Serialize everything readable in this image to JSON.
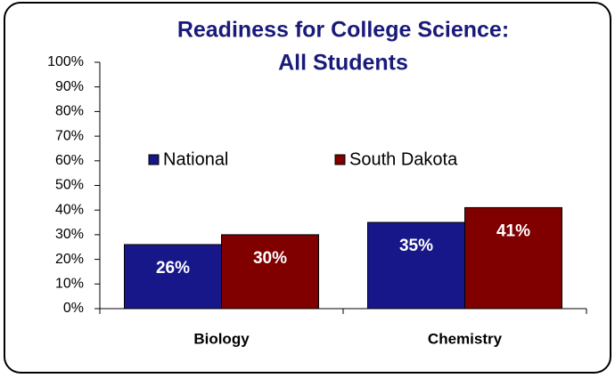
{
  "chart_data": {
    "type": "bar",
    "title": [
      "Readiness for College Science:",
      "All Students"
    ],
    "categories": [
      "Biology",
      "Chemistry"
    ],
    "series": [
      {
        "name": "National",
        "color": "#17178a",
        "values": [
          26,
          35
        ],
        "value_labels": [
          "26%",
          "35%"
        ]
      },
      {
        "name": "South Dakota",
        "color": "#800000",
        "values": [
          30,
          41
        ],
        "value_labels": [
          "30%",
          "41%"
        ]
      }
    ],
    "ylim": [
      0,
      100
    ],
    "yticks": [
      {
        "value": 0,
        "label": "0%"
      },
      {
        "value": 10,
        "label": "10%"
      },
      {
        "value": 20,
        "label": "20%"
      },
      {
        "value": 30,
        "label": "30%"
      },
      {
        "value": 40,
        "label": "40%"
      },
      {
        "value": 50,
        "label": "50%"
      },
      {
        "value": 60,
        "label": "60%"
      },
      {
        "value": 70,
        "label": "70%"
      },
      {
        "value": 80,
        "label": "80%"
      },
      {
        "value": 90,
        "label": "90%"
      },
      {
        "value": 100,
        "label": "100%"
      }
    ],
    "legend": "inside-middle"
  }
}
